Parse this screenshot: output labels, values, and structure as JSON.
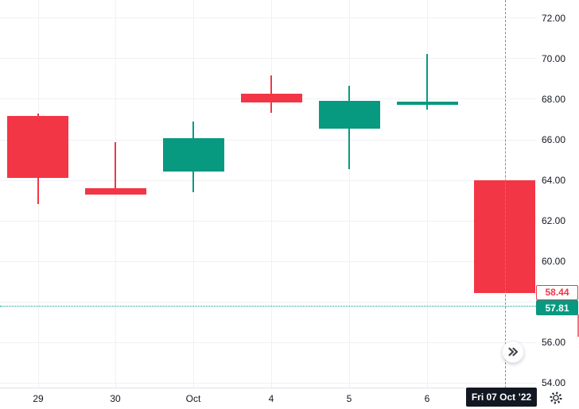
{
  "chart_data": {
    "type": "candlestick",
    "title": "",
    "colors": {
      "up": "#089981",
      "down": "#F23645",
      "grid": "#EFF1F4",
      "axis_text": "#131722",
      "crosshair": "#8A8E98",
      "badge_bg": "#131722",
      "background": "#FFFFFF"
    },
    "y_axis": {
      "side": "right",
      "top_price": 72.9,
      "bottom_price": 53.73,
      "tick_labels": [
        {
          "value": 72,
          "label": "72.00"
        },
        {
          "value": 70,
          "label": "70.00"
        },
        {
          "value": 68,
          "label": "68.00"
        },
        {
          "value": 66,
          "label": "66.00"
        },
        {
          "value": 64,
          "label": "64.00"
        },
        {
          "value": 62,
          "label": "62.00"
        },
        {
          "value": 60,
          "label": "60.00"
        },
        {
          "value": 56,
          "label": "56.00"
        },
        {
          "value": 54,
          "label": "54.00"
        }
      ],
      "gridline_values": [
        72,
        70,
        68,
        66,
        64,
        62,
        60,
        58,
        56,
        54
      ]
    },
    "x_axis": {
      "tick_labels": [
        "29",
        "30",
        "Oct",
        "4",
        "5",
        "6"
      ]
    },
    "candles": [
      {
        "time": "29",
        "open": 67.18,
        "high": 67.3,
        "low": 62.82,
        "close": 64.12
      },
      {
        "time": "30",
        "open": 63.61,
        "high": 65.88,
        "low": 63.29,
        "close": 63.29
      },
      {
        "time": "Oct",
        "open": 64.43,
        "high": 66.9,
        "low": 63.41,
        "close": 66.08
      },
      {
        "time": "4",
        "open": 68.27,
        "high": 69.18,
        "low": 67.33,
        "close": 67.84
      },
      {
        "time": "5",
        "open": 66.55,
        "high": 68.67,
        "low": 64.55,
        "close": 67.92
      },
      {
        "time": "6",
        "open": 67.73,
        "high": 70.24,
        "low": 67.5,
        "close": 67.88
      },
      {
        "time": "Fri 07 Oct ’22",
        "open": 64.0,
        "high": 64.0,
        "low": 58.44,
        "close": 58.44
      }
    ],
    "close_price_label": {
      "value": 58.44,
      "label": "58.44",
      "style": "red-outline"
    },
    "price_line": {
      "value": 57.81,
      "label": "57.81",
      "style": "teal-dotted"
    },
    "crosshair": {
      "candle_index": 6,
      "time_label": "Fri 07 Oct ’22"
    }
  },
  "time_axis": {
    "crosshair_badge": "Fri 07 Oct ’22"
  },
  "icons": {
    "scroll_to_latest": "double-chevron-right-icon",
    "axis_settings": "gear-icon"
  }
}
